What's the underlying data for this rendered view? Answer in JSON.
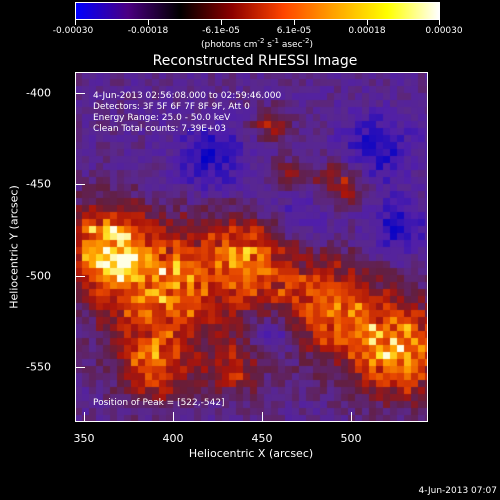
{
  "colorbar": {
    "ticks": [
      "-0.00030",
      "-0.00018",
      "-6.1e-05",
      "6.1e-05",
      "0.00018",
      "0.00030"
    ],
    "units_main": "(photons cm",
    "units_exp1": "-2",
    "units_mid1": " s",
    "units_exp2": "-1",
    "units_mid2": " asec",
    "units_exp3": "-2",
    "units_end": ")",
    "colors": [
      "#0000ff",
      "#4b0082",
      "#000000",
      "#8b0000",
      "#ff4500",
      "#ffa500",
      "#ffff00",
      "#ffffff"
    ]
  },
  "plot": {
    "title": "Reconstructed RHESSI Image",
    "xlabel": "Heliocentric X (arcsec)",
    "ylabel": "Heliocentric Y (arcsec)",
    "xticks": [
      "350",
      "400",
      "450",
      "500"
    ],
    "yticks": [
      "-400",
      "-450",
      "-500",
      "-550"
    ],
    "info_line1": "4-Jun-2013 02:56:08.000 to 02:59:46.000",
    "info_line2": "Detectors: 3F 5F 6F 7F 8F 9F, Att 0",
    "info_line3": "Energy Range: 25.0 - 50.0 keV",
    "info_line4": "Clean     Total counts: 7.39E+03",
    "peak": "Position of Peak = [522,-542]"
  },
  "footer": {
    "timestamp": "4-Jun-2013 07:07"
  }
}
